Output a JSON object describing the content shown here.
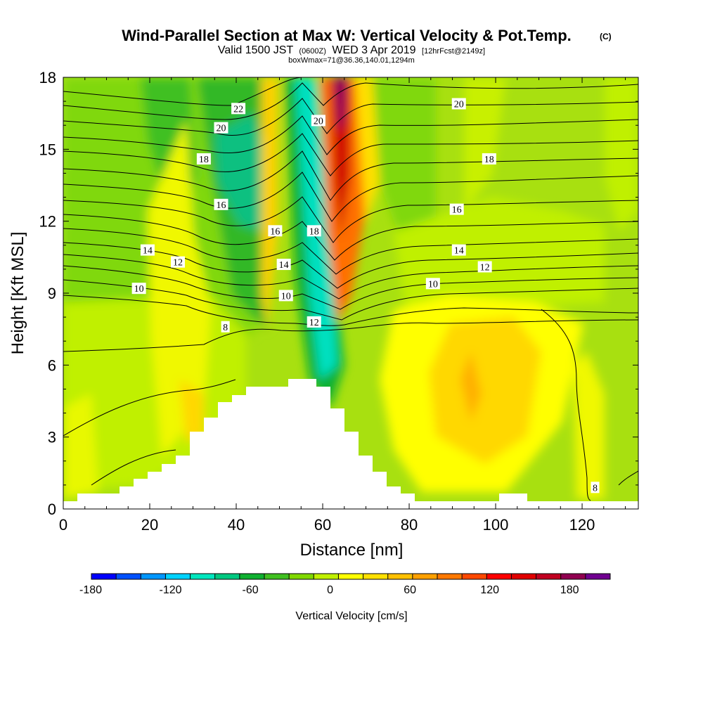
{
  "chart_data": {
    "type": "heatmap",
    "title": "Wind-Parallel Section at Max W: Vertical Velocity & Pot.Temp.",
    "title_mark": "(C)",
    "subtitle_valid": "Valid 1500 JST",
    "subtitle_utc": "(0600Z)",
    "subtitle_date": "WED 3 Apr 2019",
    "subtitle_fcst": "[12hrFcst@2149z]",
    "subtitle_box": "boxWmax=71@36.36,140.01,1294m",
    "xlabel": "Distance [nm]",
    "ylabel": "Height [Kft MSL]",
    "xlim": [
      0,
      133
    ],
    "ylim": [
      0,
      18
    ],
    "x_ticks": [
      "0",
      "20",
      "40",
      "60",
      "80",
      "100",
      "120"
    ],
    "x_tick_values": [
      0,
      20,
      40,
      60,
      80,
      100,
      120
    ],
    "y_ticks": [
      "0",
      "3",
      "6",
      "9",
      "12",
      "15",
      "18"
    ],
    "y_tick_values": [
      0,
      3,
      6,
      9,
      12,
      15,
      18
    ],
    "colorbar": {
      "label": "Vertical Velocity [cm/s]",
      "min": -180,
      "max": 210,
      "step": 15,
      "tick_labels": [
        "-180",
        "-120",
        "-60",
        "0",
        "60",
        "120",
        "180"
      ],
      "tick_values": [
        -180,
        -120,
        -60,
        0,
        60,
        120,
        180
      ],
      "colors": [
        "#0000ff",
        "#0050ff",
        "#0096ff",
        "#00d2ff",
        "#00e6be",
        "#00c880",
        "#10b030",
        "#40c020",
        "#80d800",
        "#c0f000",
        "#ffff00",
        "#ffe000",
        "#ffc000",
        "#ffa000",
        "#ff7800",
        "#ff4800",
        "#ff0000",
        "#e00000",
        "#c00020",
        "#900050",
        "#700090"
      ]
    },
    "contour_labels": [
      {
        "text": "22",
        "x": 40.5,
        "y": 16.7
      },
      {
        "text": "20",
        "x": 36.5,
        "y": 15.9
      },
      {
        "text": "18",
        "x": 32.5,
        "y": 14.6
      },
      {
        "text": "16",
        "x": 36.5,
        "y": 12.7
      },
      {
        "text": "14",
        "x": 19.5,
        "y": 10.8
      },
      {
        "text": "12",
        "x": 26.5,
        "y": 10.3
      },
      {
        "text": "10",
        "x": 17.5,
        "y": 9.2
      },
      {
        "text": "8",
        "x": 37.5,
        "y": 7.6
      },
      {
        "text": "16",
        "x": 49,
        "y": 11.6
      },
      {
        "text": "14",
        "x": 51,
        "y": 10.2
      },
      {
        "text": "10",
        "x": 51.5,
        "y": 8.9
      },
      {
        "text": "12",
        "x": 58,
        "y": 7.8
      },
      {
        "text": "18",
        "x": 58,
        "y": 11.6
      },
      {
        "text": "20",
        "x": 59,
        "y": 16.2
      },
      {
        "text": "20",
        "x": 91.5,
        "y": 16.9
      },
      {
        "text": "18",
        "x": 98.5,
        "y": 14.6
      },
      {
        "text": "16",
        "x": 91,
        "y": 12.5
      },
      {
        "text": "14",
        "x": 91.5,
        "y": 10.8
      },
      {
        "text": "12",
        "x": 97.5,
        "y": 10.1
      },
      {
        "text": "10",
        "x": 85.5,
        "y": 9.4
      },
      {
        "text": "8",
        "x": 123,
        "y": 0.9
      }
    ]
  }
}
